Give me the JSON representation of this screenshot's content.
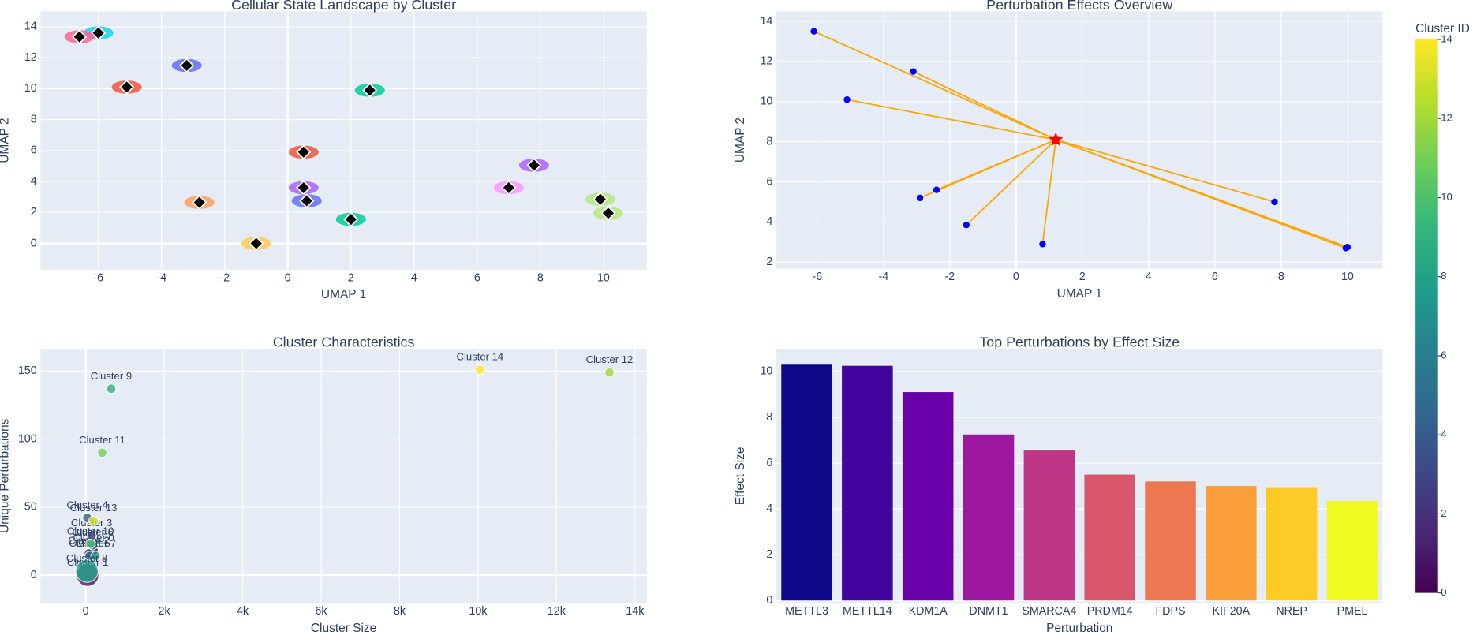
{
  "chart_data": [
    {
      "type": "scatter",
      "title": "Cellular State Landscape by Cluster",
      "x_label": "UMAP 1",
      "y_label": "UMAP 2",
      "x": [
        -6.0,
        -6.6,
        -3.2,
        -5.1,
        2.6,
        0.5,
        -2.8,
        0.5,
        0.6,
        2.0,
        -1.0,
        7.0,
        7.8,
        9.9,
        10.15
      ],
      "y": [
        13.6,
        13.35,
        11.5,
        10.1,
        9.9,
        5.9,
        2.65,
        3.6,
        2.75,
        1.55,
        0.0,
        3.6,
        5.05,
        2.85,
        1.95
      ],
      "colors": [
        "#19d3f3",
        "#ff6692",
        "#636efa",
        "#ef553b",
        "#00cc96",
        "#ef553b",
        "#ffa15a",
        "#ab63fa",
        "#636efa",
        "#00cc96",
        "#fecb52",
        "#ff97ff",
        "#ab63fa",
        "#b6e880",
        "#b6e880"
      ],
      "marker_color": "#000000",
      "xlim": [
        -7.83,
        11.37
      ],
      "ylim": [
        -1.7,
        15
      ],
      "xticks": [
        -6,
        -4,
        -2,
        0,
        2,
        4,
        6,
        8,
        10
      ],
      "yticks": [
        0,
        2,
        4,
        6,
        8,
        10,
        12,
        14
      ],
      "grid": true
    },
    {
      "type": "radial",
      "title": "Perturbation Effects Overview",
      "x_label": "UMAP 1",
      "y_label": "UMAP 2",
      "center": [
        1.2,
        8.1
      ],
      "center_color": "#ff0000",
      "x": [
        -6.1,
        -3.1,
        -5.1,
        -2.4,
        -2.9,
        -1.5,
        0.8,
        7.8,
        10.0,
        9.95
      ],
      "y": [
        13.5,
        11.5,
        10.1,
        5.6,
        5.2,
        3.85,
        2.9,
        5.0,
        2.75,
        2.7
      ],
      "color": "#0000ff",
      "line_color": "#ffa500",
      "xlim": [
        -7.23,
        11.06
      ],
      "ylim": [
        1.67,
        14.5
      ],
      "xticks": [
        -6,
        -4,
        -2,
        0,
        2,
        4,
        6,
        8,
        10
      ],
      "yticks": [
        2,
        4,
        6,
        8,
        10,
        12,
        14
      ],
      "grid": true
    },
    {
      "type": "bubble",
      "title": "Cluster Characteristics",
      "x_label": "Cluster Size",
      "y_label": "Unique Perturbations",
      "names": [
        "Cluster 0",
        "Cluster 1",
        "Cluster 2",
        "Cluster 3",
        "Cluster 4",
        "Cluster 5",
        "Cluster 6",
        "Cluster 7",
        "Cluster 8",
        "Cluster 9",
        "Cluster 10",
        "Cluster 11",
        "Cluster 12",
        "Cluster 13",
        "Cluster 14"
      ],
      "x": [
        200,
        50,
        80,
        150,
        40,
        100,
        180,
        250,
        30,
        650,
        120,
        420,
        13350,
        200,
        10050
      ],
      "y": [
        18,
        0,
        16,
        29,
        42,
        14,
        22,
        14,
        3,
        137,
        23,
        90,
        149,
        40,
        151
      ],
      "cluster_ids": [
        0,
        1,
        2,
        3,
        4,
        5,
        6,
        7,
        8,
        9,
        10,
        11,
        12,
        13,
        14
      ],
      "colorscale": [
        "#440154",
        "#482878",
        "#3e4989",
        "#31688e",
        "#26828e",
        "#1f9e89",
        "#35b779",
        "#6ece58",
        "#b5de2b",
        "#fde725"
      ],
      "clim": [
        0,
        14
      ],
      "colorbar_title": "Cluster ID",
      "colorbar_ticks": [
        0,
        2,
        4,
        6,
        8,
        10,
        12,
        14
      ],
      "xlim": [
        -1150,
        14300
      ],
      "ylim": [
        -20.7,
        166.5
      ],
      "xticks": [
        0,
        {
          "value": 2000,
          "label": "2k"
        },
        {
          "value": 4000,
          "label": "4k"
        },
        {
          "value": 6000,
          "label": "6k"
        },
        {
          "value": 8000,
          "label": "8k"
        },
        {
          "value": 10000,
          "label": "10k"
        },
        {
          "value": 12000,
          "label": "12k"
        },
        {
          "value": 14000,
          "label": "14k"
        }
      ],
      "yticks": [
        0,
        50,
        100,
        150
      ],
      "grid": true
    },
    {
      "type": "bar",
      "title": "Top Perturbations by Effect Size",
      "x_label": "Perturbation",
      "y_label": "Effect Size",
      "categories": [
        "METTL3",
        "METTL14",
        "KDM1A",
        "DNMT1",
        "SMARCA4",
        "PRDM14",
        "FDPS",
        "KIF20A",
        "NREP",
        "PMEL"
      ],
      "values": [
        10.3,
        10.25,
        9.1,
        7.25,
        6.55,
        5.5,
        5.2,
        5.0,
        4.95,
        4.35
      ],
      "colors": [
        "#0d0887",
        "#41049d",
        "#6a00a8",
        "#9c179e",
        "#bd3786",
        "#d8576b",
        "#ed7953",
        "#fb9f3a",
        "#fdca26",
        "#f0f921"
      ],
      "ylim": [
        -0.12,
        11
      ],
      "yticks": [
        0,
        2,
        4,
        6,
        8,
        10
      ],
      "grid": true
    }
  ]
}
